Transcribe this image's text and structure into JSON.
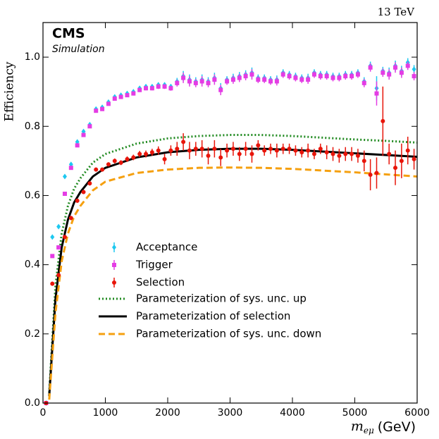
{
  "chart_data": {
    "type": "scatter",
    "experiment": "CMS",
    "subtitle": "Simulation",
    "energy": "13 TeV",
    "ylabel": "Efficiency",
    "xlabel": {
      "symbol": "m",
      "subscript": "eμ",
      "unit": "(GeV)"
    },
    "xlim": [
      0,
      6000
    ],
    "xticks": [
      0,
      1000,
      2000,
      3000,
      4000,
      5000,
      6000
    ],
    "ylim": [
      0,
      1.1
    ],
    "yticks": [
      {
        "value": 0,
        "label": "0.0"
      },
      0.2,
      0.4,
      0.6,
      0.8,
      {
        "value": 1,
        "label": "1.0"
      }
    ],
    "legend": "center",
    "x": [
      50,
      150,
      250,
      350,
      450,
      550,
      650,
      750,
      850,
      950,
      1050,
      1150,
      1250,
      1350,
      1450,
      1550,
      1650,
      1750,
      1850,
      1950,
      2050,
      2150,
      2250,
      2350,
      2450,
      2550,
      2650,
      2750,
      2850,
      2950,
      3050,
      3150,
      3250,
      3350,
      3450,
      3550,
      3650,
      3750,
      3850,
      3950,
      4050,
      4150,
      4250,
      4350,
      4450,
      4550,
      4650,
      4750,
      4850,
      4950,
      5050,
      5150,
      5250,
      5350,
      5450,
      5550,
      5650,
      5750,
      5850,
      5950
    ],
    "series": [
      {
        "name": "Acceptance",
        "color": "#1ec8f0",
        "marker": "diamond",
        "values": [
          0.0,
          0.48,
          0.51,
          0.655,
          0.69,
          0.755,
          0.785,
          0.805,
          0.85,
          0.855,
          0.87,
          0.885,
          0.89,
          0.895,
          0.9,
          0.91,
          0.915,
          0.915,
          0.92,
          0.92,
          0.915,
          0.93,
          0.945,
          0.935,
          0.93,
          0.935,
          0.93,
          0.94,
          0.91,
          0.935,
          0.94,
          0.945,
          0.95,
          0.955,
          0.94,
          0.94,
          0.935,
          0.935,
          0.955,
          0.95,
          0.945,
          0.94,
          0.94,
          0.955,
          0.95,
          0.95,
          0.945,
          0.945,
          0.95,
          0.95,
          0.955,
          0.93,
          0.975,
          0.91,
          0.96,
          0.955,
          0.975,
          0.96,
          0.985,
          0.965
        ],
        "errors": [
          0.003,
          0.005,
          0.005,
          0.005,
          0.005,
          0.005,
          0.005,
          0.005,
          0.005,
          0.005,
          0.005,
          0.005,
          0.005,
          0.005,
          0.006,
          0.006,
          0.006,
          0.006,
          0.007,
          0.007,
          0.007,
          0.01,
          0.015,
          0.015,
          0.012,
          0.015,
          0.012,
          0.015,
          0.015,
          0.01,
          0.012,
          0.012,
          0.012,
          0.015,
          0.01,
          0.01,
          0.01,
          0.012,
          0.01,
          0.01,
          0.01,
          0.01,
          0.012,
          0.01,
          0.01,
          0.01,
          0.01,
          0.01,
          0.01,
          0.01,
          0.01,
          0.012,
          0.012,
          0.035,
          0.012,
          0.015,
          0.015,
          0.015,
          0.012,
          0.012
        ]
      },
      {
        "name": "Trigger",
        "color": "#e43ce4",
        "marker": "square",
        "values": [
          0.0,
          0.425,
          0.45,
          0.605,
          0.68,
          0.745,
          0.775,
          0.8,
          0.845,
          0.85,
          0.865,
          0.88,
          0.885,
          0.89,
          0.895,
          0.905,
          0.91,
          0.91,
          0.915,
          0.915,
          0.91,
          0.925,
          0.94,
          0.93,
          0.925,
          0.93,
          0.925,
          0.935,
          0.905,
          0.93,
          0.935,
          0.94,
          0.945,
          0.95,
          0.935,
          0.935,
          0.93,
          0.93,
          0.95,
          0.945,
          0.94,
          0.935,
          0.935,
          0.95,
          0.945,
          0.945,
          0.94,
          0.94,
          0.945,
          0.945,
          0.95,
          0.925,
          0.97,
          0.895,
          0.955,
          0.95,
          0.97,
          0.955,
          0.975,
          0.945
        ],
        "errors": [
          0.003,
          0.005,
          0.005,
          0.005,
          0.005,
          0.005,
          0.005,
          0.005,
          0.005,
          0.005,
          0.005,
          0.005,
          0.005,
          0.005,
          0.006,
          0.006,
          0.006,
          0.006,
          0.007,
          0.007,
          0.007,
          0.01,
          0.015,
          0.015,
          0.012,
          0.015,
          0.012,
          0.015,
          0.015,
          0.01,
          0.012,
          0.012,
          0.012,
          0.015,
          0.01,
          0.01,
          0.01,
          0.012,
          0.01,
          0.01,
          0.01,
          0.01,
          0.012,
          0.01,
          0.01,
          0.01,
          0.01,
          0.01,
          0.01,
          0.01,
          0.01,
          0.012,
          0.012,
          0.035,
          0.012,
          0.015,
          0.015,
          0.015,
          0.012,
          0.012
        ]
      },
      {
        "name": "Selection",
        "color": "#e8150a",
        "marker": "circle",
        "values": [
          0.0,
          0.345,
          0.37,
          0.48,
          0.535,
          0.585,
          0.61,
          0.635,
          0.675,
          0.675,
          0.69,
          0.7,
          0.695,
          0.705,
          0.71,
          0.72,
          0.72,
          0.725,
          0.73,
          0.705,
          0.73,
          0.735,
          0.755,
          0.73,
          0.735,
          0.735,
          0.715,
          0.735,
          0.71,
          0.73,
          0.735,
          0.72,
          0.735,
          0.72,
          0.745,
          0.73,
          0.735,
          0.73,
          0.735,
          0.735,
          0.73,
          0.725,
          0.73,
          0.72,
          0.735,
          0.725,
          0.72,
          0.715,
          0.72,
          0.72,
          0.715,
          0.7,
          0.66,
          0.665,
          0.815,
          0.72,
          0.68,
          0.7,
          0.73,
          0.705
        ],
        "errors": [
          0.003,
          0.006,
          0.006,
          0.006,
          0.006,
          0.006,
          0.006,
          0.006,
          0.006,
          0.006,
          0.006,
          0.007,
          0.007,
          0.008,
          0.008,
          0.009,
          0.01,
          0.01,
          0.012,
          0.015,
          0.015,
          0.02,
          0.025,
          0.025,
          0.02,
          0.025,
          0.025,
          0.025,
          0.025,
          0.02,
          0.02,
          0.02,
          0.02,
          0.025,
          0.015,
          0.015,
          0.015,
          0.02,
          0.015,
          0.015,
          0.015,
          0.015,
          0.02,
          0.015,
          0.015,
          0.02,
          0.02,
          0.02,
          0.02,
          0.02,
          0.02,
          0.03,
          0.045,
          0.045,
          0.1,
          0.03,
          0.05,
          0.05,
          0.04,
          0.03
        ]
      }
    ],
    "fit_x": [
      100,
      200,
      300,
      400,
      500,
      600,
      800,
      1000,
      1500,
      2000,
      2500,
      3000,
      3500,
      4000,
      4500,
      5000,
      5500,
      6000
    ],
    "fits": [
      {
        "name": "Parameterization of sys. unc. up",
        "color": "#228b22",
        "style": "dotted",
        "values": [
          0.03,
          0.34,
          0.49,
          0.57,
          0.62,
          0.65,
          0.695,
          0.72,
          0.75,
          0.765,
          0.772,
          0.775,
          0.775,
          0.772,
          0.767,
          0.762,
          0.758,
          0.753
        ]
      },
      {
        "name": "Parameterization of selection",
        "color": "#000000",
        "style": "solid",
        "values": [
          0.02,
          0.3,
          0.45,
          0.53,
          0.58,
          0.61,
          0.655,
          0.68,
          0.71,
          0.725,
          0.732,
          0.735,
          0.735,
          0.732,
          0.727,
          0.722,
          0.717,
          0.712
        ]
      },
      {
        "name": "Parameterization of sys. unc. down",
        "color": "#f5a010",
        "style": "dashed",
        "values": [
          0.01,
          0.26,
          0.41,
          0.49,
          0.54,
          0.57,
          0.615,
          0.64,
          0.665,
          0.675,
          0.68,
          0.681,
          0.68,
          0.677,
          0.672,
          0.667,
          0.661,
          0.655
        ]
      }
    ]
  }
}
